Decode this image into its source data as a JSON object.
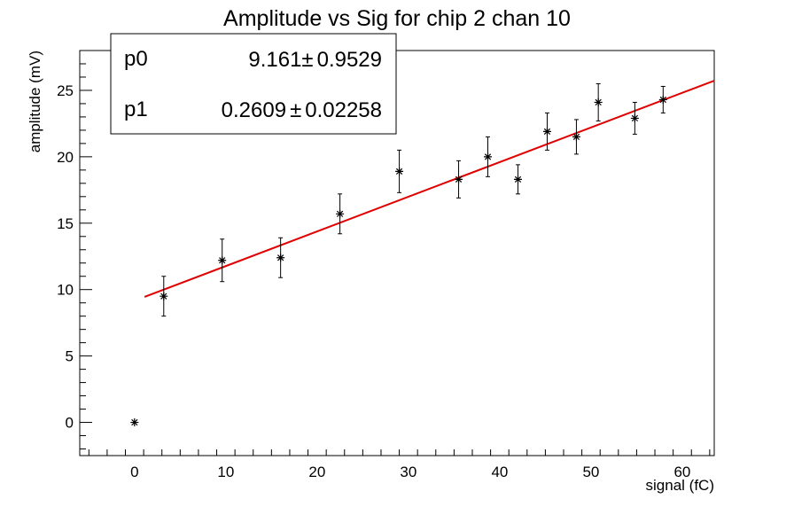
{
  "chart_data": {
    "type": "scatter",
    "title": "Amplitude vs Sig for chip 2 chan 10",
    "xlabel": "signal (fC)",
    "ylabel": "amplitude (mV)",
    "xlim": [
      -6,
      63.5
    ],
    "ylim": [
      -2.5,
      28
    ],
    "x_ticks": [
      0,
      10,
      20,
      30,
      40,
      50,
      60
    ],
    "y_ticks": [
      0,
      5,
      10,
      15,
      20,
      25
    ],
    "x_tick_labels": [
      "0",
      "10",
      "20",
      "30",
      "40",
      "50",
      "60"
    ],
    "y_tick_labels": [
      "0",
      "5",
      "10",
      "15",
      "20",
      "25"
    ],
    "grid": false,
    "points": [
      {
        "x": 0,
        "y": 0,
        "err": 0
      },
      {
        "x": 3.2,
        "y": 9.5,
        "err": 1.5
      },
      {
        "x": 9.6,
        "y": 12.2,
        "err": 1.6
      },
      {
        "x": 16.0,
        "y": 12.4,
        "err": 1.5
      },
      {
        "x": 22.5,
        "y": 15.7,
        "err": 1.5
      },
      {
        "x": 29.0,
        "y": 18.9,
        "err": 1.6
      },
      {
        "x": 35.5,
        "y": 18.3,
        "err": 1.4
      },
      {
        "x": 38.7,
        "y": 20.0,
        "err": 1.5
      },
      {
        "x": 42.0,
        "y": 18.3,
        "err": 1.1
      },
      {
        "x": 45.2,
        "y": 21.9,
        "err": 1.4
      },
      {
        "x": 48.4,
        "y": 21.5,
        "err": 1.3
      },
      {
        "x": 50.8,
        "y": 24.1,
        "err": 1.4
      },
      {
        "x": 54.8,
        "y": 22.9,
        "err": 1.2
      },
      {
        "x": 57.9,
        "y": 24.3,
        "err": 1.0
      }
    ],
    "fit": {
      "p0": 9.161,
      "p1": 0.2609,
      "x_range": [
        1.1,
        63.5
      ],
      "color": "#e00000"
    },
    "stats": [
      {
        "name": "p0",
        "value": "9.161",
        "error": "0.9529",
        "pm": "±"
      },
      {
        "name": "p1",
        "value": "0.2609",
        "error": "0.02258",
        "pm": "±"
      }
    ],
    "stats_box_placement": "top-left"
  }
}
